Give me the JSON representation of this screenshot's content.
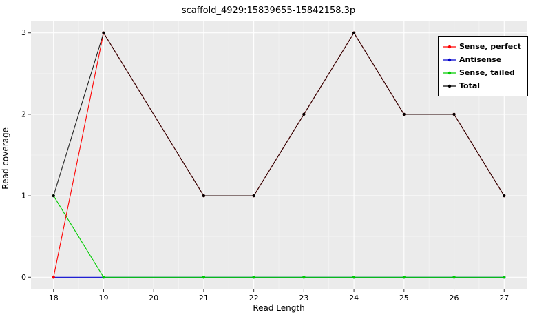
{
  "chart_data": {
    "type": "line",
    "title": "scaffold_4929:15839655-15842158.3p",
    "xlabel": "Read Length",
    "ylabel": "Read coverage",
    "x": [
      18,
      19,
      21,
      22,
      23,
      24,
      25,
      26,
      27
    ],
    "series": [
      {
        "name": "Sense, perfect",
        "color": "#FF0000",
        "values": [
          0,
          3,
          1,
          1,
          2,
          3,
          2,
          2,
          1
        ]
      },
      {
        "name": "Antisense",
        "color": "#0000CC",
        "values": [
          0,
          0,
          0,
          0,
          0,
          0,
          0,
          0,
          0
        ]
      },
      {
        "name": "Sense, tailed",
        "color": "#00CC00",
        "values": [
          1,
          0,
          0,
          0,
          0,
          0,
          0,
          0,
          0
        ]
      },
      {
        "name": "Total",
        "color": "#000000",
        "values": [
          1,
          3,
          1,
          1,
          2,
          3,
          2,
          2,
          1
        ]
      }
    ],
    "x_ticks": [
      18,
      19,
      20,
      21,
      22,
      23,
      24,
      25,
      26,
      27
    ],
    "y_ticks": [
      0,
      1,
      2,
      3
    ],
    "xlim": [
      17.55,
      27.45
    ],
    "ylim": [
      -0.15,
      3.15
    ],
    "grid": true,
    "legend_position": "top-right",
    "panel_bg": "#EBEBEB",
    "grid_major": "#FFFFFF",
    "grid_minor": "#F5F5F5",
    "tick_color": "#333333"
  }
}
